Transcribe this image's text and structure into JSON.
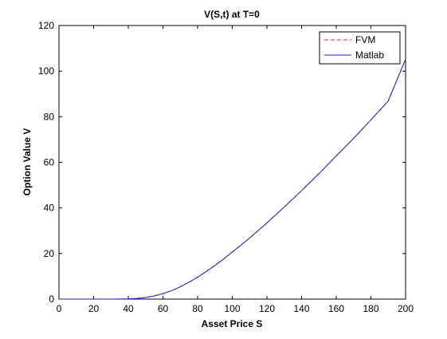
{
  "chart_data": {
    "type": "line",
    "title": "V(S,t) at T=0",
    "xlabel": "Asset Price S",
    "ylabel": "Option Value V",
    "xlim": [
      0,
      200
    ],
    "ylim": [
      0,
      120
    ],
    "xticks": [
      0,
      20,
      40,
      60,
      80,
      100,
      120,
      140,
      160,
      180,
      200
    ],
    "yticks": [
      0,
      20,
      40,
      60,
      80,
      100,
      120
    ],
    "grid": false,
    "legend_position": "top-right",
    "series": [
      {
        "name": "FVM",
        "color": "#cc3333",
        "line_style": "dashed",
        "x": [
          0,
          10,
          20,
          30,
          40,
          45,
          50,
          55,
          60,
          65,
          70,
          75,
          80,
          85,
          90,
          95,
          100,
          110,
          120,
          130,
          140,
          150,
          160,
          170,
          180,
          190,
          200
        ],
        "y": [
          0,
          0,
          0,
          0,
          0.1,
          0.3,
          0.7,
          1.4,
          2.4,
          3.7,
          5.4,
          7.4,
          9.6,
          12.1,
          14.8,
          17.6,
          20.6,
          26.8,
          33.4,
          40.4,
          47.6,
          55.0,
          62.8,
          70.5,
          78.6,
          86.9,
          105.2
        ]
      },
      {
        "name": "Matlab",
        "color": "#1f1fcf",
        "line_style": "solid",
        "x": [
          0,
          10,
          20,
          30,
          40,
          45,
          50,
          55,
          60,
          65,
          70,
          75,
          80,
          85,
          90,
          95,
          100,
          110,
          120,
          130,
          140,
          150,
          160,
          170,
          180,
          190,
          200
        ],
        "y": [
          0,
          0,
          0,
          0,
          0.1,
          0.3,
          0.7,
          1.4,
          2.4,
          3.7,
          5.4,
          7.4,
          9.6,
          12.1,
          14.8,
          17.6,
          20.6,
          26.8,
          33.4,
          40.4,
          47.6,
          55.0,
          62.8,
          70.5,
          78.6,
          86.9,
          105.2
        ]
      }
    ]
  }
}
